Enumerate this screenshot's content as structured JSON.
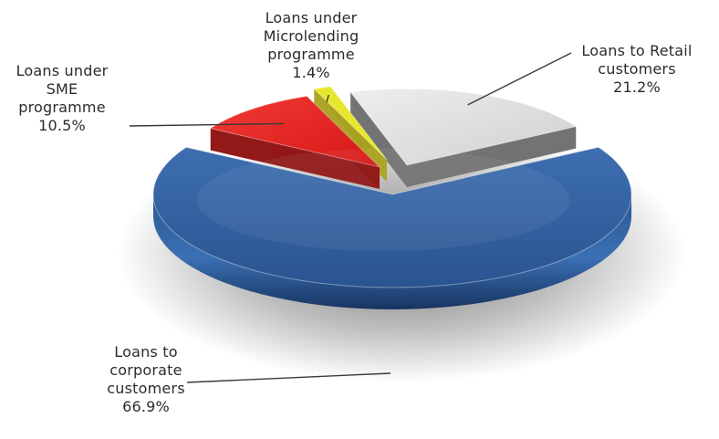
{
  "chart_data": {
    "type": "pie",
    "title": "",
    "slices": [
      {
        "label": "Loans to corporate customers",
        "lines": [
          "Loans to",
          "corporate",
          "customers"
        ],
        "value": 66.9,
        "value_label": "66.9%",
        "color": "#2f5d9b",
        "dark": "#1c3c69"
      },
      {
        "label": "Loans under SME programme",
        "lines": [
          "Loans under",
          "SME",
          "programme"
        ],
        "value": 10.5,
        "value_label": "10.5%",
        "color": "#e8201f",
        "dark": "#8d0d0d"
      },
      {
        "label": "Loans under Microlending programme",
        "lines": [
          "Loans under",
          "Microlending",
          "programme"
        ],
        "value": 1.4,
        "value_label": "1.4%",
        "color": "#e7e72e",
        "dark": "#a8a01c"
      },
      {
        "label": "Loans to Retail customers",
        "lines": [
          "Loans to Retail",
          "customers"
        ],
        "value": 21.2,
        "value_label": "21.2%",
        "color": "#d9d9d9",
        "dark": "#6b6b6b"
      }
    ],
    "legend": "none",
    "style": "3d-exploded"
  }
}
